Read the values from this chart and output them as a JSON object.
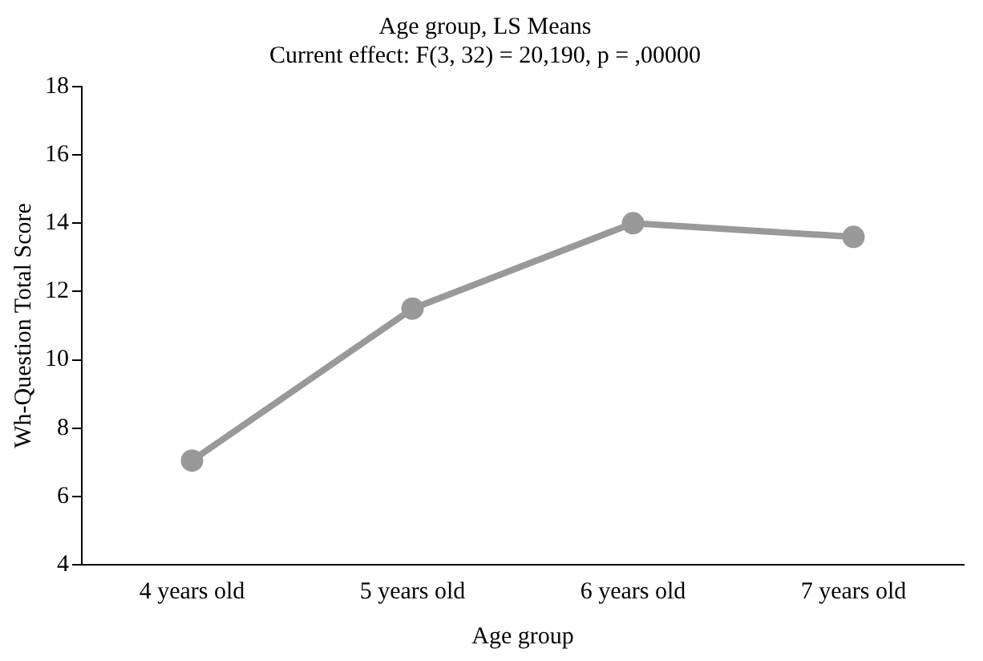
{
  "chart_data": {
    "type": "line",
    "title": "Age group, LS Means",
    "subtitle": "Current effect: F(3, 32) = 20,190, p = ,00000",
    "xlabel": "Age group",
    "ylabel": "Wh-Question Total Score",
    "categories": [
      "4 years old",
      "5 years old",
      "6 years old",
      "7 years old"
    ],
    "series": [
      {
        "color": "#999999",
        "values": [
          7.05,
          11.5,
          14.0,
          13.6
        ]
      }
    ],
    "ylim": [
      4,
      18
    ],
    "yticks": [
      4,
      6,
      8,
      10,
      12,
      14,
      16,
      18
    ],
    "grid": false,
    "legend": false,
    "marker": "circle",
    "line_style": "solid"
  }
}
